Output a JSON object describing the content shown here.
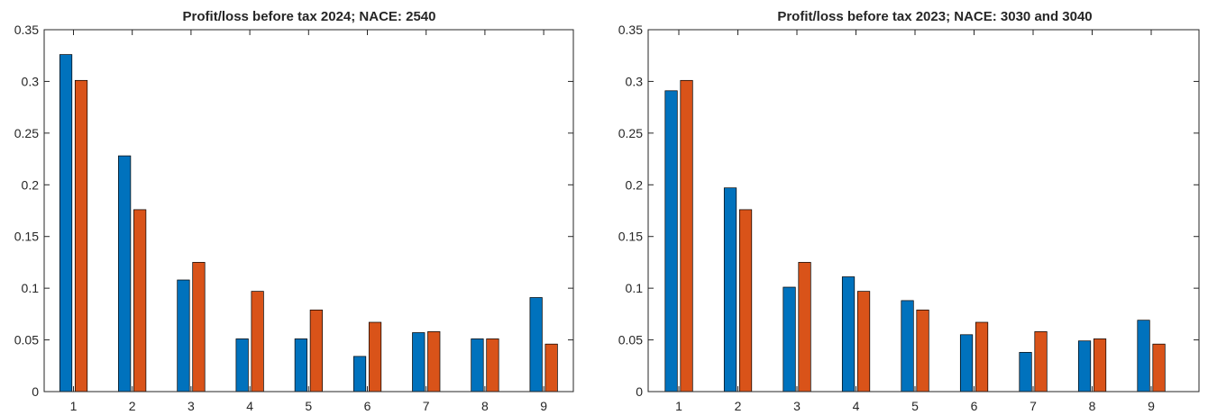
{
  "colors": {
    "series_a": "#0072BD",
    "series_b": "#D95319",
    "axis": "#262626",
    "background": "#ffffff"
  },
  "chart_data": [
    {
      "type": "bar",
      "title": "Profit/loss before tax 2024; NACE: 2540",
      "xlabel": "",
      "ylabel": "",
      "categories": [
        "1",
        "2",
        "3",
        "4",
        "5",
        "6",
        "7",
        "8",
        "9"
      ],
      "ylim": [
        0,
        0.35
      ],
      "yticks": [
        "0",
        "0.05",
        "0.1",
        "0.15",
        "0.2",
        "0.25",
        "0.3",
        "0.35"
      ],
      "grid": false,
      "series": [
        {
          "values": [
            0.326,
            0.228,
            0.108,
            0.051,
            0.051,
            0.034,
            0.057,
            0.051,
            0.091
          ]
        },
        {
          "values": [
            0.301,
            0.176,
            0.125,
            0.097,
            0.079,
            0.067,
            0.058,
            0.051,
            0.046
          ]
        }
      ]
    },
    {
      "type": "bar",
      "title": "Profit/loss before tax 2023; NACE: 3030 and 3040",
      "xlabel": "",
      "ylabel": "",
      "categories": [
        "1",
        "2",
        "3",
        "4",
        "5",
        "6",
        "7",
        "8",
        "9"
      ],
      "ylim": [
        0,
        0.35
      ],
      "yticks": [
        "0",
        "0.05",
        "0.1",
        "0.15",
        "0.2",
        "0.25",
        "0.3",
        "0.35"
      ],
      "grid": false,
      "series": [
        {
          "values": [
            0.291,
            0.197,
            0.101,
            0.111,
            0.088,
            0.055,
            0.038,
            0.049,
            0.069
          ]
        },
        {
          "values": [
            0.301,
            0.176,
            0.125,
            0.097,
            0.079,
            0.067,
            0.058,
            0.051,
            0.046
          ]
        }
      ]
    }
  ]
}
